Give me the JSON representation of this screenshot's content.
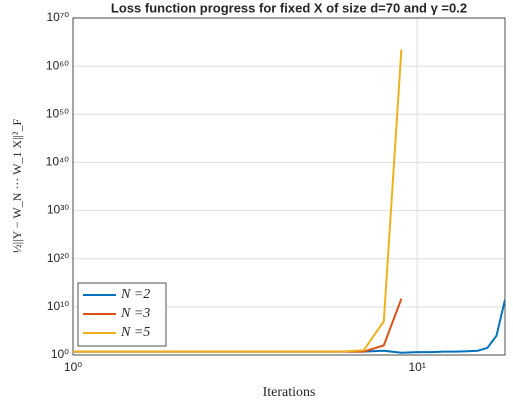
{
  "chart_data": {
    "type": "line",
    "title": "Loss function progress for fixed X of size d=70 and γ =0.2",
    "x_label": "Iterations",
    "y_label": "½||Y − W_N ··· W_1 X||²_F",
    "x_scale": "log",
    "y_scale": "log",
    "grid": true,
    "legend_position": "lower left",
    "xlim": [
      1,
      18
    ],
    "xticks": [
      {
        "value": 1,
        "label": "10⁰"
      },
      {
        "value": 10,
        "label": "10¹"
      }
    ],
    "ylim": [
      1,
      1e+70
    ],
    "yticks": [
      {
        "value": 1,
        "label": "10⁰"
      },
      {
        "value": 10000000000.0,
        "label": "10¹⁰"
      },
      {
        "value": 1e+20,
        "label": "10²⁰"
      },
      {
        "value": 1e+30,
        "label": "10³⁰"
      },
      {
        "value": 1e+40,
        "label": "10⁴⁰"
      },
      {
        "value": 1e+50,
        "label": "10⁵⁰"
      },
      {
        "value": 1e+60,
        "label": "10⁶⁰"
      },
      {
        "value": 1e+70,
        "label": "10⁷⁰"
      }
    ],
    "series": [
      {
        "name": "N =2",
        "color": "#0072bd",
        "x": [
          1,
          2,
          3,
          4,
          5,
          6,
          7,
          8,
          9,
          10,
          11,
          12,
          13,
          14,
          15,
          16,
          17,
          18
        ],
        "values": [
          5,
          5,
          5,
          5,
          5,
          5,
          5,
          8,
          3,
          4,
          4,
          5,
          5,
          6,
          8,
          30,
          10000,
          300000000000
        ]
      },
      {
        "name": "N =3",
        "color": "#d95319",
        "x": [
          1,
          2,
          3,
          4,
          5,
          6,
          7,
          8,
          9
        ],
        "values": [
          5,
          5,
          5,
          5,
          5,
          5,
          5,
          100,
          500000000000
        ]
      },
      {
        "name": "N =5",
        "color": "#edb120",
        "x": [
          1,
          2,
          3,
          4,
          5,
          6,
          7,
          8,
          9
        ],
        "values": [
          5,
          5,
          5,
          5,
          5,
          5,
          10,
          10000000,
          3e+63
        ]
      }
    ]
  }
}
